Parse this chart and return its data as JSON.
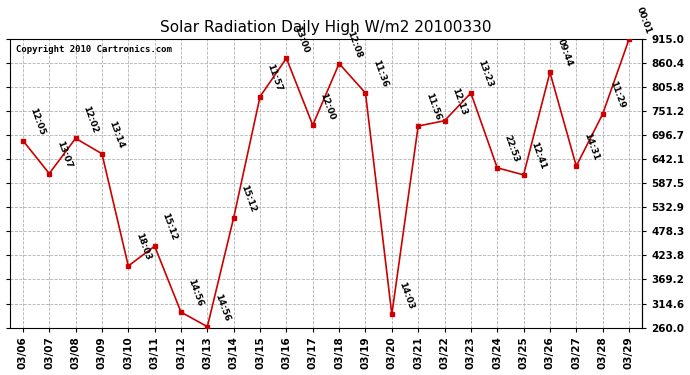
{
  "title": "Solar Radiation Daily High W/m2 20100330",
  "copyright": "Copyright 2010 Cartronics.com",
  "dates": [
    "03/06",
    "03/07",
    "03/08",
    "03/09",
    "03/10",
    "03/11",
    "03/12",
    "03/13",
    "03/14",
    "03/15",
    "03/16",
    "03/17",
    "03/18",
    "03/19",
    "03/20",
    "03/21",
    "03/22",
    "03/23",
    "03/24",
    "03/25",
    "03/26",
    "03/27",
    "03/28",
    "03/29"
  ],
  "values": [
    685,
    610,
    690,
    655,
    400,
    445,
    295,
    262,
    510,
    785,
    872,
    720,
    860,
    793,
    290,
    718,
    730,
    793,
    623,
    607,
    840,
    627,
    745,
    915
  ],
  "time_labels": [
    "12:05",
    "13:07",
    "12:02",
    "13:14",
    "18:03",
    "15:12",
    "14:56",
    "14:56",
    "15:12",
    "11:57",
    "13:00",
    "12:00",
    "12:08",
    "11:36",
    "14:03",
    "11:56",
    "12:13",
    "13:23",
    "22:53",
    "12:41",
    "09:44",
    "14:31",
    "11:29",
    "00:01"
  ],
  "ymin": 260.0,
  "ymax": 915.0,
  "yticks": [
    260.0,
    314.6,
    369.2,
    423.8,
    478.3,
    532.9,
    587.5,
    642.1,
    696.7,
    751.2,
    805.8,
    860.4,
    915.0
  ],
  "line_color": "#cc0000",
  "marker_color": "#cc0000",
  "bg_color": "#ffffff",
  "grid_color": "#aaaaaa",
  "title_fontsize": 11,
  "label_fontsize": 6.5,
  "tick_fontsize": 7.5,
  "copyright_fontsize": 6.5
}
